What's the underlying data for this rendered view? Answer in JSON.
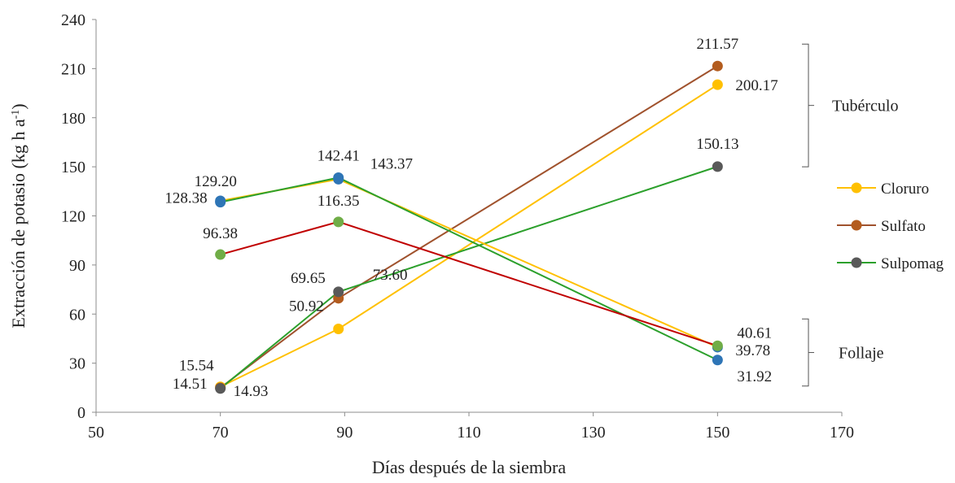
{
  "chart_data": {
    "type": "line",
    "xlabel": "Días después de la siembra",
    "ylabel": "Extracción de potasio (kg h a-1)",
    "ylabel_main": "Extracción de potasio (kg h a",
    "ylabel_sup": "-1",
    "ylabel_end": ")",
    "xlim": [
      50,
      170
    ],
    "ylim": [
      0,
      240
    ],
    "xticks": [
      "50",
      "70",
      "90",
      "110",
      "130",
      "150",
      "170"
    ],
    "yticks": [
      "0",
      "30",
      "60",
      "90",
      "120",
      "150",
      "180",
      "210",
      "240"
    ],
    "grid": false,
    "legend_position": "right",
    "legend": [
      {
        "name": "Cloruro",
        "line_color": "#FFC000",
        "marker_color": "#FFC000"
      },
      {
        "name": "Sulfato",
        "line_color": "#A0522D",
        "marker_color": "#B35C1E"
      },
      {
        "name": "Sulpomag",
        "line_color": "#2CA02C",
        "marker_color": "#595959"
      }
    ],
    "groups": [
      {
        "label": "Tubérculo",
        "y_range": [
          150,
          225
        ]
      },
      {
        "label": "Follaje",
        "y_range": [
          16,
          57
        ]
      }
    ],
    "series": [
      {
        "key": "cloruro_tuberculo",
        "x": [
          70,
          89,
          150
        ],
        "y": [
          15.54,
          50.92,
          200.17
        ],
        "line_color": "#FFC000",
        "marker_color": "#FFC000",
        "labels": [
          "15.54",
          "50.92",
          "200.17"
        ]
      },
      {
        "key": "sulfato_tuberculo",
        "x": [
          70,
          89,
          150
        ],
        "y": [
          14.93,
          69.65,
          211.57
        ],
        "line_color": "#A0522D",
        "marker_color": "#B35C1E",
        "labels": [
          "14.93",
          "69.65",
          "211.57"
        ]
      },
      {
        "key": "sulpomag_tuberculo",
        "x": [
          70,
          89,
          150
        ],
        "y": [
          14.51,
          73.6,
          150.13
        ],
        "line_color": "#2CA02C",
        "marker_color": "#595959",
        "labels": [
          "14.51",
          "73.60",
          "150.13"
        ]
      },
      {
        "key": "cloruro_follaje",
        "x": [
          70,
          89,
          150
        ],
        "y": [
          129.2,
          142.41,
          39.78
        ],
        "line_color": "#FFC000",
        "marker_color": "#2E75B6",
        "labels": [
          "129.20",
          "142.41",
          "39.78"
        ]
      },
      {
        "key": "sulpomag_follaje",
        "x": [
          70,
          89,
          150
        ],
        "y": [
          128.38,
          143.37,
          31.92
        ],
        "line_color": "#2CA02C",
        "marker_color": "#2E75B6",
        "labels": [
          "128.38",
          "143.37",
          "31.92"
        ]
      },
      {
        "key": "sulfato_follaje",
        "x": [
          70,
          89,
          150
        ],
        "y": [
          96.38,
          116.35,
          40.61
        ],
        "line_color": "#C00000",
        "marker_color": "#70AD47",
        "labels": [
          "96.38",
          "116.35",
          "40.61"
        ]
      }
    ]
  }
}
